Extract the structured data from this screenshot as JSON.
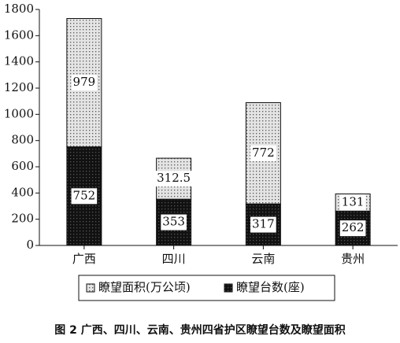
{
  "chart_data": {
    "type": "stacked_bar",
    "caption": "图 2  广西、四川、云南、贵州四省护区瞭望台数及瞭望面积",
    "categories": [
      "广西",
      "四川",
      "云南",
      "贵州"
    ],
    "series": [
      {
        "name": "瞭望台数(座)",
        "color": "#111111",
        "values": [
          752,
          353,
          317,
          262
        ]
      },
      {
        "name": "瞭望面积(万公顷)",
        "color": "#e4e4e4",
        "values": [
          979,
          312.5,
          772,
          131
        ]
      }
    ],
    "ylim": [
      0,
      1800
    ],
    "yticks": [
      0,
      200,
      400,
      600,
      800,
      1000,
      1200,
      1400,
      1600,
      1800
    ]
  }
}
